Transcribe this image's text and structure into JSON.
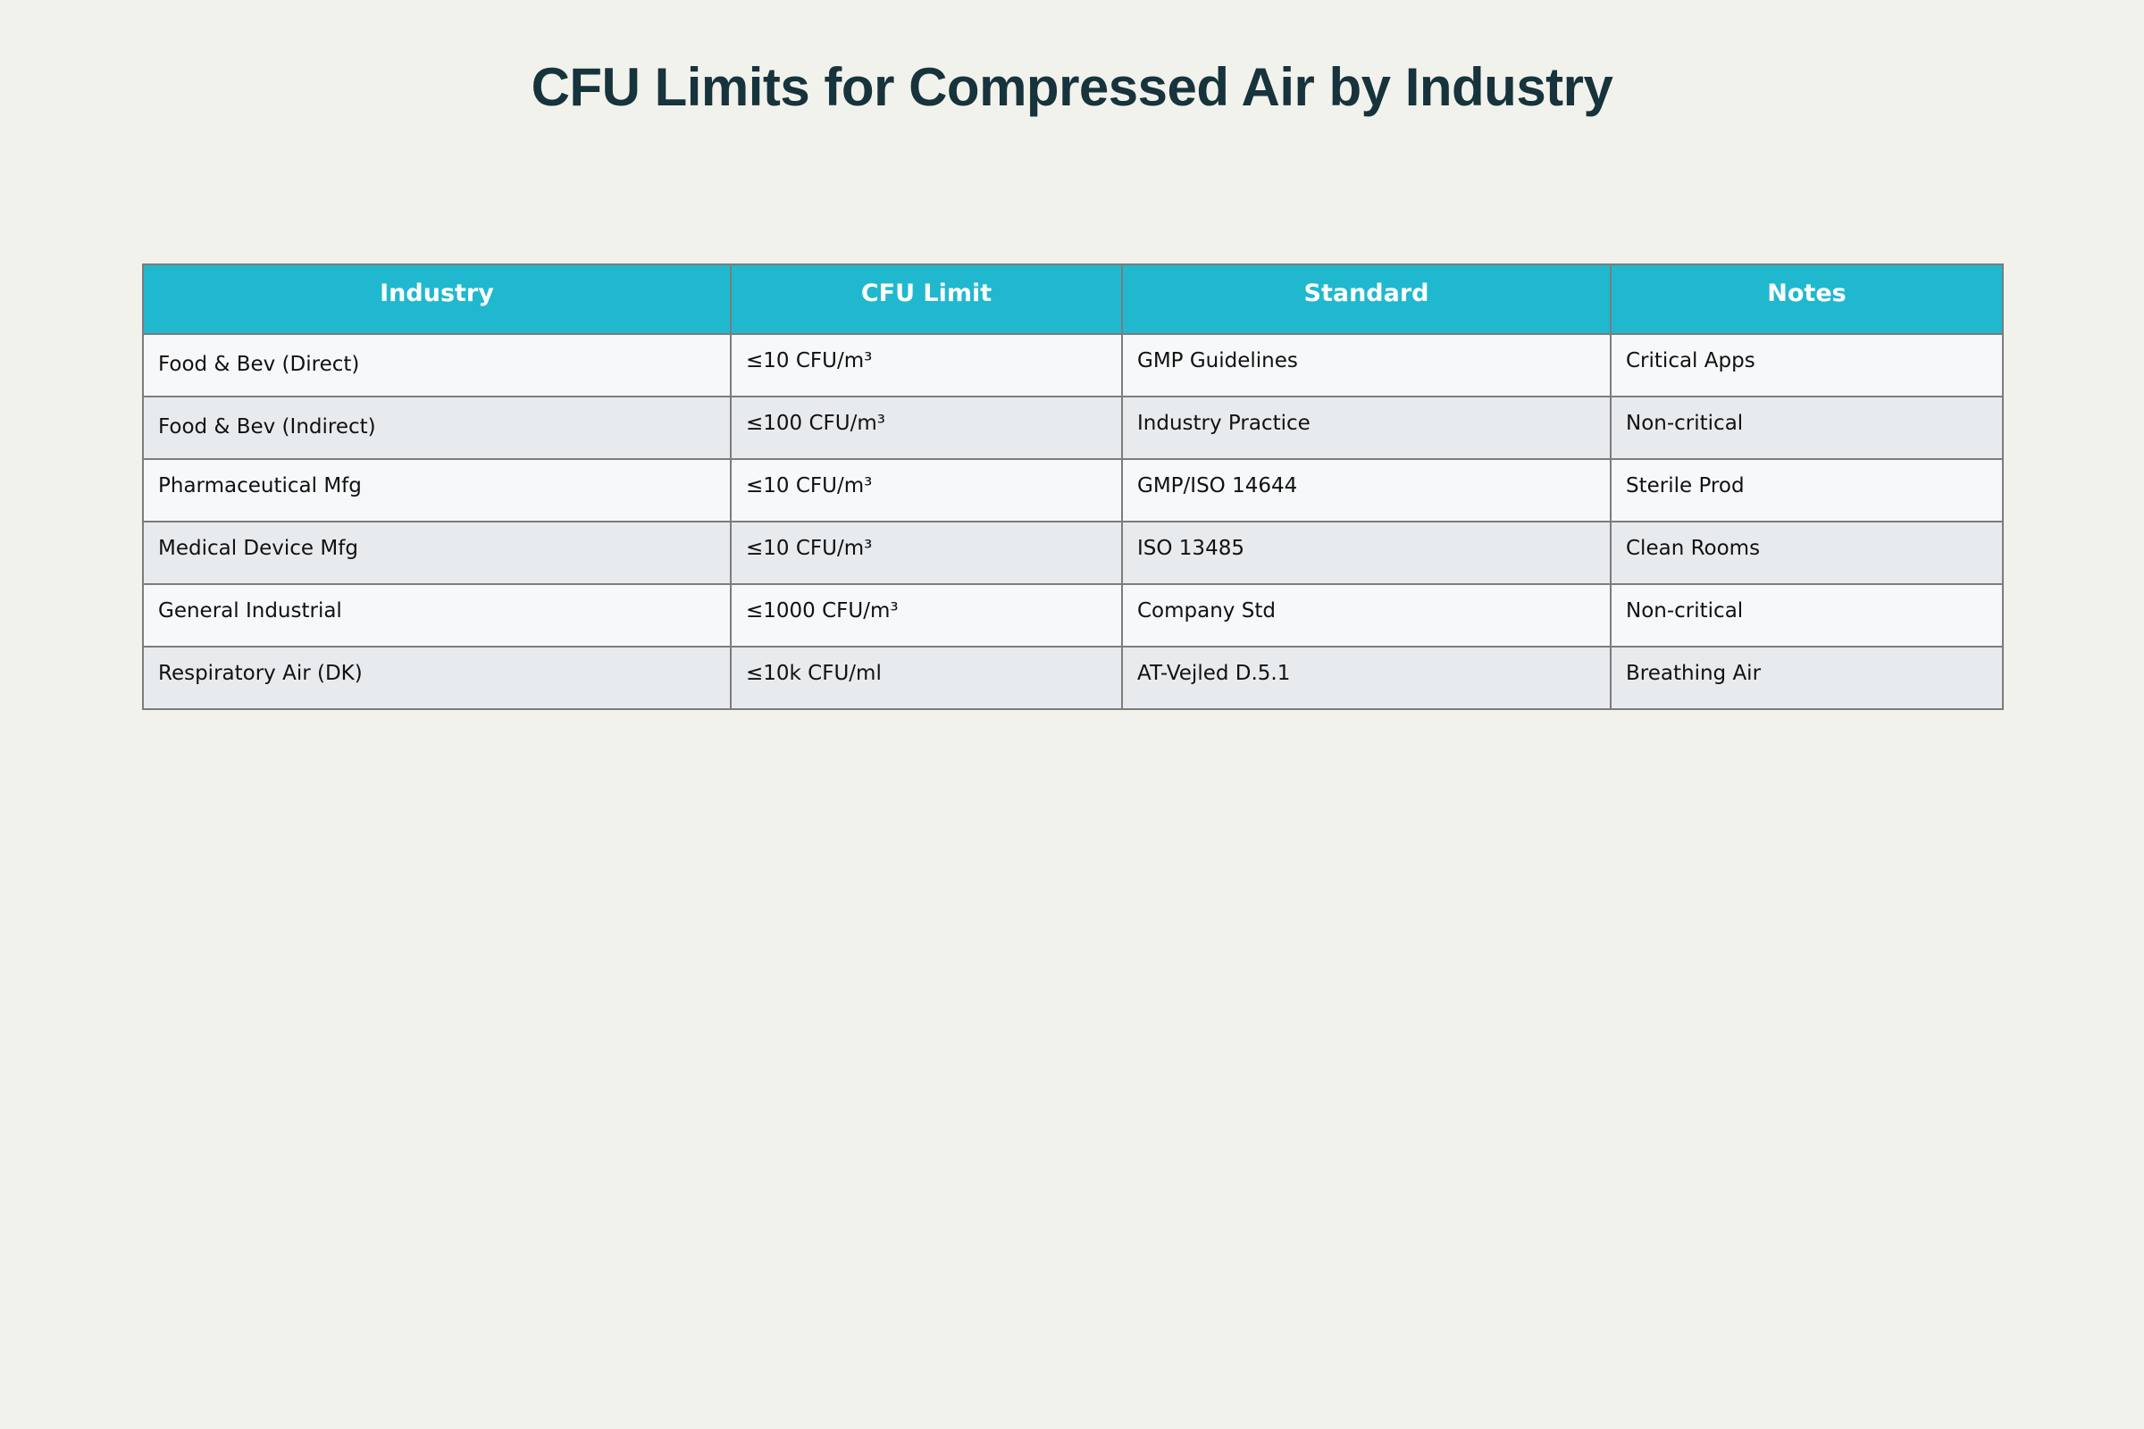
{
  "title": "CFU Limits for Compressed Air by Industry",
  "colors": {
    "background": "#f2f2ec",
    "title": "#17333c",
    "header_bg": "#20b8cf",
    "header_text": "#ffffff",
    "row_light": "#f7f8fa",
    "row_dark": "#e8ebee",
    "border": "#7c7c7c"
  },
  "chart_data": {
    "type": "table",
    "title": "CFU Limits for Compressed Air by Industry",
    "columns": [
      "Industry",
      "CFU Limit",
      "Standard",
      "Notes"
    ],
    "rows": [
      [
        "Food & Bev (Direct)",
        "≤10 CFU/m³",
        "GMP Guidelines",
        "Critical Apps"
      ],
      [
        "Food & Bev (Indirect)",
        "≤100 CFU/m³",
        "Industry Practice",
        "Non-critical"
      ],
      [
        "Pharmaceutical Mfg",
        "≤10 CFU/m³",
        "GMP/ISO 14644",
        "Sterile Prod"
      ],
      [
        "Medical Device Mfg",
        "≤10 CFU/m³",
        "ISO 13485",
        "Clean Rooms"
      ],
      [
        "General Industrial",
        "≤1000 CFU/m³",
        "Company Std",
        "Non-critical"
      ],
      [
        "Respiratory Air (DK)",
        "≤10k CFU/ml",
        "AT-Vejled D.5.1",
        "Breathing Air"
      ]
    ]
  }
}
